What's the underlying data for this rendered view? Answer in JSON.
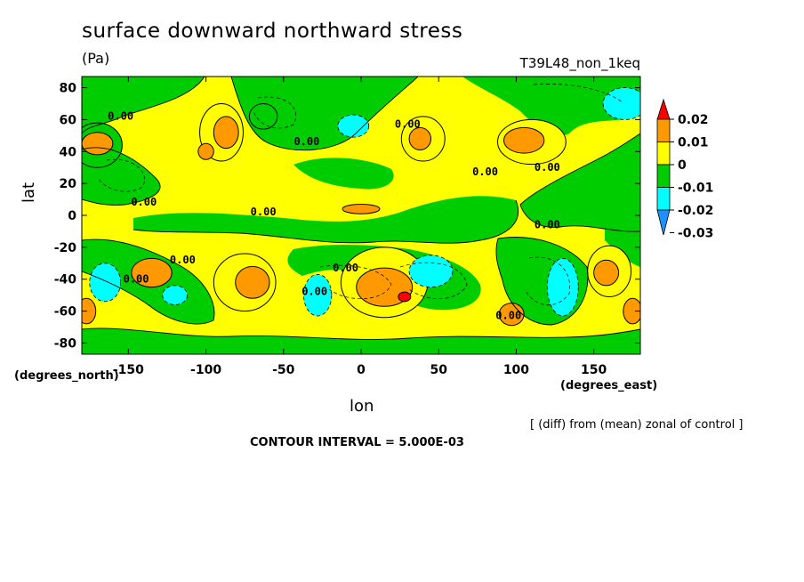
{
  "figure": {
    "title": "surface downward northward stress",
    "units": "(Pa)",
    "experiment": "T39L48_non_1keq",
    "y_axis_title": "lat",
    "x_axis_title": "lon",
    "y_units": "(degrees_north)",
    "x_units": "(degrees_east)",
    "note": "[ (diff) from (mean) zonal of control ]",
    "contour_interval": "CONTOUR INTERVAL = 5.000E-03"
  },
  "colors": {
    "neg3": "#1e90ff",
    "neg2": "#00ffff",
    "neg1": "#00cd00",
    "pos0": "#ffff00",
    "pos1": "#ff9900",
    "pos2": "#ff0000"
  },
  "chart_data": {
    "type": "heatmap",
    "title": "surface downward northward stress",
    "units": "Pa",
    "xlabel": "lon",
    "ylabel": "lat",
    "xlim": [
      -180,
      180
    ],
    "ylim": [
      -87,
      87
    ],
    "x_ticks": [
      -150,
      -100,
      -50,
      0,
      50,
      100,
      150
    ],
    "x_tick_labels": [
      "-150",
      "-100",
      "-50",
      "0",
      "50",
      "100",
      "150"
    ],
    "y_ticks": [
      80,
      60,
      40,
      20,
      0,
      -20,
      -40,
      -60,
      -80
    ],
    "y_tick_labels": [
      "80",
      "60",
      "40",
      "20",
      "0",
      "-20",
      "-40",
      "-60",
      "-80"
    ],
    "colorbar": {
      "levels": [
        0.02,
        0.01,
        0,
        -0.01,
        -0.02,
        -0.03
      ],
      "labels": [
        "0.02",
        "0.01",
        "0",
        "-0.01",
        "-0.02",
        "-0.03"
      ]
    },
    "contour_interval": 0.005,
    "contour_labels": [
      {
        "text": "0.00",
        "lon": -155,
        "lat": 60
      },
      {
        "text": "0.00",
        "lon": -140,
        "lat": 6
      },
      {
        "text": "0.00",
        "lon": -35,
        "lat": 44
      },
      {
        "text": "0.00",
        "lon": 30,
        "lat": 55
      },
      {
        "text": "0.00",
        "lon": -63,
        "lat": 0
      },
      {
        "text": "0.00",
        "lon": 120,
        "lat": -8
      },
      {
        "text": "0.00",
        "lon": 120,
        "lat": 28
      },
      {
        "text": "0.00",
        "lon": 80,
        "lat": 25
      },
      {
        "text": "0.00",
        "lon": -115,
        "lat": -30
      },
      {
        "text": "0.00",
        "lon": -145,
        "lat": -42
      },
      {
        "text": "0.00",
        "lon": -10,
        "lat": -35
      },
      {
        "text": "0.00",
        "lon": -30,
        "lat": -50
      },
      {
        "text": "0.00",
        "lon": 95,
        "lat": -65
      }
    ],
    "blobs": [
      {
        "lon": -170,
        "lat": 44,
        "rx": 16,
        "ry": 14,
        "level": "neg1"
      },
      {
        "lon": -170,
        "lat": 45,
        "rx": 10,
        "ry": 7,
        "level": "pos1"
      },
      {
        "lon": -90,
        "lat": 52,
        "rx": 14,
        "ry": 18,
        "level": "pos0"
      },
      {
        "lon": -87,
        "lat": 52,
        "rx": 8,
        "ry": 10,
        "level": "pos1"
      },
      {
        "lon": -100,
        "lat": 40,
        "rx": 5,
        "ry": 5,
        "level": "pos1"
      },
      {
        "lon": -63,
        "lat": 62,
        "rx": 9,
        "ry": 8,
        "level": "neg1"
      },
      {
        "lon": -5,
        "lat": 56,
        "rx": 10,
        "ry": 7,
        "level": "neg2"
      },
      {
        "lon": 40,
        "lat": 48,
        "rx": 14,
        "ry": 14,
        "level": "pos0"
      },
      {
        "lon": 38,
        "lat": 48,
        "rx": 7,
        "ry": 7,
        "level": "pos1"
      },
      {
        "lon": 110,
        "lat": 46,
        "rx": 22,
        "ry": 14,
        "level": "pos0"
      },
      {
        "lon": 105,
        "lat": 47,
        "rx": 13,
        "ry": 8,
        "level": "pos1"
      },
      {
        "lon": 170,
        "lat": 70,
        "rx": 14,
        "ry": 10,
        "level": "neg2"
      },
      {
        "lon": 0,
        "lat": 4,
        "rx": 12,
        "ry": 3,
        "level": "pos1"
      },
      {
        "lon": -135,
        "lat": -36,
        "rx": 13,
        "ry": 9,
        "level": "pos1"
      },
      {
        "lon": -165,
        "lat": -42,
        "rx": 10,
        "ry": 12,
        "level": "neg2"
      },
      {
        "lon": -120,
        "lat": -50,
        "rx": 8,
        "ry": 6,
        "level": "neg2"
      },
      {
        "lon": -75,
        "lat": -42,
        "rx": 20,
        "ry": 18,
        "level": "pos0"
      },
      {
        "lon": -70,
        "lat": -42,
        "rx": 11,
        "ry": 10,
        "level": "pos1"
      },
      {
        "lon": -28,
        "lat": -50,
        "rx": 9,
        "ry": 13,
        "level": "neg2"
      },
      {
        "lon": 15,
        "lat": -42,
        "rx": 28,
        "ry": 22,
        "level": "pos0"
      },
      {
        "lon": 15,
        "lat": -45,
        "rx": 18,
        "ry": 12,
        "level": "pos1"
      },
      {
        "lon": 28,
        "lat": -51,
        "rx": 4,
        "ry": 3,
        "level": "pos2"
      },
      {
        "lon": 45,
        "lat": -35,
        "rx": 14,
        "ry": 10,
        "level": "neg2"
      },
      {
        "lon": 130,
        "lat": -45,
        "rx": 10,
        "ry": 18,
        "level": "neg2"
      },
      {
        "lon": 160,
        "lat": -35,
        "rx": 14,
        "ry": 16,
        "level": "pos0"
      },
      {
        "lon": 158,
        "lat": -36,
        "rx": 8,
        "ry": 8,
        "level": "pos1"
      },
      {
        "lon": 97,
        "lat": -62,
        "rx": 8,
        "ry": 7,
        "level": "pos1"
      },
      {
        "lon": -177,
        "lat": -60,
        "rx": 6,
        "ry": 8,
        "level": "pos1"
      },
      {
        "lon": 175,
        "lat": -60,
        "rx": 6,
        "ry": 8,
        "level": "pos1"
      }
    ]
  }
}
